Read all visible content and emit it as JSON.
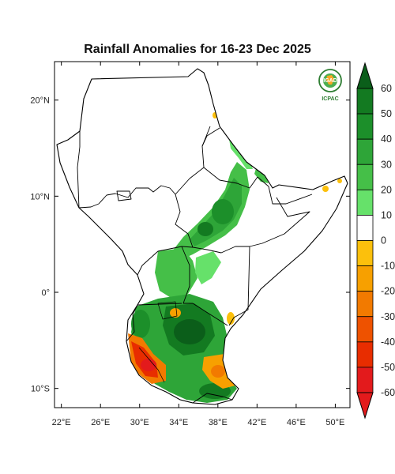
{
  "title": "Rainfall Anomalies for 16-23 Dec 2025",
  "logo": {
    "top_text": "IGAD",
    "bottom_text": "ICPAC"
  },
  "axes": {
    "x_ticks": [
      {
        "lon": 22,
        "label": "22°E"
      },
      {
        "lon": 26,
        "label": "26°E"
      },
      {
        "lon": 30,
        "label": "30°E"
      },
      {
        "lon": 34,
        "label": "34°E"
      },
      {
        "lon": 38,
        "label": "38°E"
      },
      {
        "lon": 42,
        "label": "42°E"
      },
      {
        "lon": 46,
        "label": "46°E"
      },
      {
        "lon": 50,
        "label": "50°E"
      }
    ],
    "y_ticks": [
      {
        "lat": 20,
        "label": "20°N"
      },
      {
        "lat": 10,
        "label": "10°N"
      },
      {
        "lat": 0,
        "label": "0°"
      },
      {
        "lat": -10,
        "label": "10°S"
      }
    ],
    "lon_range": [
      21.3,
      51.5
    ],
    "lat_range": [
      -12,
      24
    ]
  },
  "colorbar": {
    "labels": [
      "60",
      "50",
      "40",
      "30",
      "20",
      "10",
      "0",
      "-10",
      "-20",
      "-30",
      "-40",
      "-50",
      "-60"
    ],
    "colors": [
      "#0b5e1a",
      "#137a21",
      "#1c8f2a",
      "#2ea538",
      "#45bf48",
      "#66e16a",
      "#ffffff",
      "#fcc00c",
      "#f7a000",
      "#f27a00",
      "#ee5200",
      "#e82d00",
      "#e31a1c"
    ]
  }
}
